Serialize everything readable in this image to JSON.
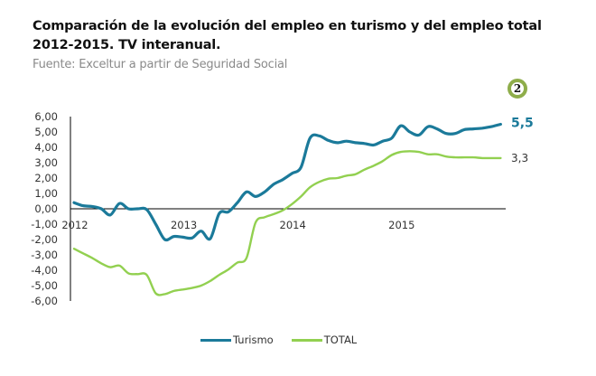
{
  "header": {
    "title": "Comparación de la evolución del empleo en turismo y del empleo total 2012-2015. TV interanual.",
    "source": "Fuente: Exceltur a partir de Seguridad Social",
    "badge": "2"
  },
  "colors": {
    "turismo": "#1b7a9a",
    "total": "#92d050",
    "badge_ring": "#8ead4a",
    "axis": "#000000"
  },
  "chart_data": {
    "type": "line",
    "title": "Comparación de la evolución del empleo en turismo y del empleo total 2012-2015. TV interanual.",
    "xlabel": "",
    "ylabel": "",
    "ylim": [
      -6,
      6
    ],
    "yticks": [
      "6,00",
      "5,00",
      "4,00",
      "3,00",
      "2,00",
      "1,00",
      "0,00",
      "-1,00",
      "-2,00",
      "-3,00",
      "-4,00",
      "-5,00",
      "-6,00"
    ],
    "ytick_values": [
      6,
      5,
      4,
      3,
      2,
      1,
      0,
      -1,
      -2,
      -3,
      -4,
      -5,
      -6
    ],
    "xtick_labels": [
      "2012",
      "2013",
      "2014",
      "2015"
    ],
    "xtick_month_index": [
      0,
      12,
      24,
      36
    ],
    "x_period": "monthly, Jan 2012 – Dec 2015",
    "grid": false,
    "legend_position": "bottom",
    "series": [
      {
        "name": "Turismo",
        "end_label": "5,5",
        "values": [
          0.4,
          0.2,
          0.15,
          0.0,
          -0.4,
          0.35,
          0.0,
          0.0,
          -0.05,
          -1.0,
          -2.0,
          -1.8,
          -1.85,
          -1.9,
          -1.45,
          -1.95,
          -0.3,
          -0.2,
          0.4,
          1.1,
          0.8,
          1.1,
          1.6,
          1.9,
          2.3,
          2.7,
          4.6,
          4.75,
          4.45,
          4.3,
          4.4,
          4.3,
          4.25,
          4.15,
          4.4,
          4.6,
          5.4,
          5.0,
          4.8,
          5.35,
          5.2,
          4.9,
          4.9,
          5.15,
          5.2,
          5.25,
          5.35,
          5.5
        ]
      },
      {
        "name": "TOTAL",
        "end_label": "3,3",
        "values": [
          -2.6,
          -2.9,
          -3.2,
          -3.55,
          -3.8,
          -3.7,
          -4.2,
          -4.25,
          -4.3,
          -5.5,
          -5.55,
          -5.35,
          -5.25,
          -5.15,
          -5.0,
          -4.7,
          -4.3,
          -3.95,
          -3.5,
          -3.2,
          -0.9,
          -0.55,
          -0.35,
          -0.1,
          0.3,
          0.8,
          1.4,
          1.75,
          1.95,
          2.0,
          2.15,
          2.25,
          2.55,
          2.8,
          3.1,
          3.5,
          3.7,
          3.75,
          3.7,
          3.55,
          3.55,
          3.4,
          3.35,
          3.35,
          3.35,
          3.3,
          3.3,
          3.3
        ]
      }
    ]
  }
}
